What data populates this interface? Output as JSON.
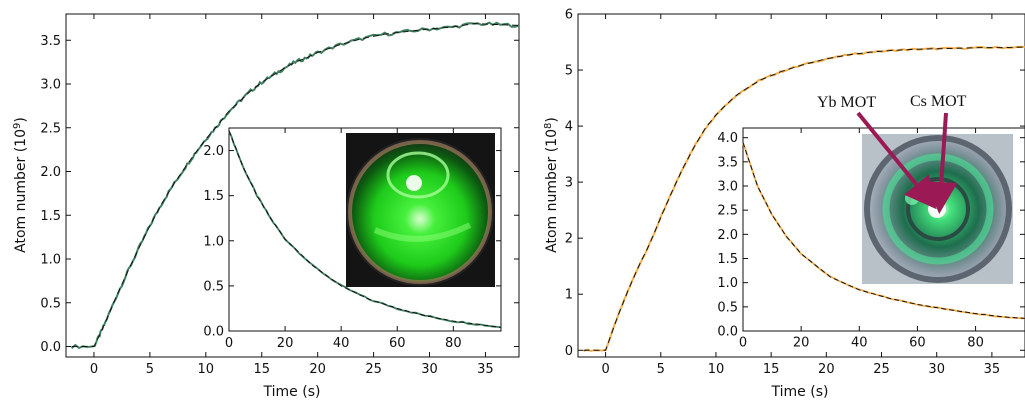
{
  "colors": {
    "left_trace": "#3f7f5f",
    "right_trace": "#f4b04c",
    "fit": "#111111",
    "arrow": "#9b1a56"
  },
  "chart_data": [
    {
      "name": "left-panel",
      "type": "line",
      "xlabel": "Time  (s)",
      "ylabel": "Atom number (10^9)",
      "ylabel_base": "Atom number (10",
      "ylabel_exp": "9",
      "ylabel_close": ")",
      "xlim": [
        -2.5,
        38
      ],
      "ylim": [
        -0.12,
        3.8
      ],
      "xticks": [
        "0",
        "5",
        "10",
        "15",
        "20",
        "25",
        "30",
        "35"
      ],
      "yticks": [
        "0.0",
        "0.5",
        "1.0",
        "1.5",
        "2.0",
        "2.5",
        "3.0",
        "3.5"
      ],
      "series": [
        {
          "x": [
            -2,
            0,
            0.5,
            1,
            2,
            3,
            4,
            5,
            6,
            7,
            8,
            9,
            10,
            11,
            12,
            13,
            14,
            15,
            16,
            17,
            18,
            19,
            20,
            22,
            24,
            26,
            28,
            30,
            32,
            34,
            36,
            38
          ],
          "y": [
            0.0,
            0.0,
            0.13,
            0.27,
            0.57,
            0.85,
            1.12,
            1.38,
            1.62,
            1.83,
            2.02,
            2.2,
            2.37,
            2.52,
            2.68,
            2.8,
            2.92,
            3.02,
            3.1,
            3.18,
            3.25,
            3.3,
            3.36,
            3.45,
            3.52,
            3.57,
            3.6,
            3.63,
            3.65,
            3.69,
            3.68,
            3.67
          ]
        }
      ],
      "inset": {
        "xlim": [
          0,
          97
        ],
        "ylim": [
          0,
          2.25
        ],
        "xticks": [
          "0",
          "20",
          "40",
          "60",
          "80"
        ],
        "yticks": [
          "0.0",
          "0.5",
          "1.0",
          "1.5",
          "2.0"
        ],
        "x": [
          0,
          5,
          10,
          15,
          20,
          30,
          40,
          50,
          60,
          70,
          80,
          90,
          97
        ],
        "y": [
          2.22,
          1.82,
          1.5,
          1.24,
          1.02,
          0.72,
          0.5,
          0.35,
          0.25,
          0.17,
          0.11,
          0.07,
          0.04
        ]
      }
    },
    {
      "name": "right-panel",
      "type": "line",
      "xlabel": "Time  (s)",
      "ylabel": "Atom number (10^8)",
      "ylabel_base": "Atom number (10",
      "ylabel_exp": "8",
      "ylabel_close": ")",
      "xlim": [
        -2.5,
        38
      ],
      "ylim": [
        -0.12,
        6
      ],
      "xticks": [
        "0",
        "5",
        "10",
        "15",
        "20",
        "25",
        "30",
        "35"
      ],
      "yticks": [
        "0",
        "1",
        "2",
        "3",
        "4",
        "5",
        "6"
      ],
      "series": [
        {
          "x": [
            -2,
            0,
            1,
            2,
            3,
            4,
            5,
            6,
            7,
            8,
            9,
            10,
            11,
            12,
            13,
            14,
            15,
            16,
            18,
            20,
            22,
            24,
            26,
            28,
            30,
            32,
            34,
            36,
            38
          ],
          "y": [
            0.0,
            0.0,
            0.55,
            1.05,
            1.5,
            1.9,
            2.37,
            2.82,
            3.25,
            3.62,
            3.95,
            4.2,
            4.4,
            4.57,
            4.7,
            4.82,
            4.9,
            4.98,
            5.1,
            5.2,
            5.27,
            5.32,
            5.35,
            5.37,
            5.38,
            5.39,
            5.4,
            5.4,
            5.41
          ]
        }
      ],
      "inset": {
        "xlim": [
          0,
          97
        ],
        "ylim": [
          0,
          4.2
        ],
        "xticks": [
          "0",
          "20",
          "40",
          "60",
          "80"
        ],
        "yticks": [
          "0.0",
          "0.5",
          "1.0",
          "1.5",
          "2.0",
          "2.5",
          "3.0",
          "3.5",
          "4.0"
        ],
        "x": [
          0,
          5,
          10,
          15,
          20,
          30,
          40,
          50,
          60,
          70,
          80,
          90,
          97
        ],
        "y": [
          3.9,
          3.0,
          2.4,
          1.95,
          1.6,
          1.12,
          0.85,
          0.68,
          0.55,
          0.45,
          0.36,
          0.29,
          0.26
        ]
      },
      "annotations": [
        "Yb MOT",
        "Cs MOT"
      ]
    }
  ]
}
